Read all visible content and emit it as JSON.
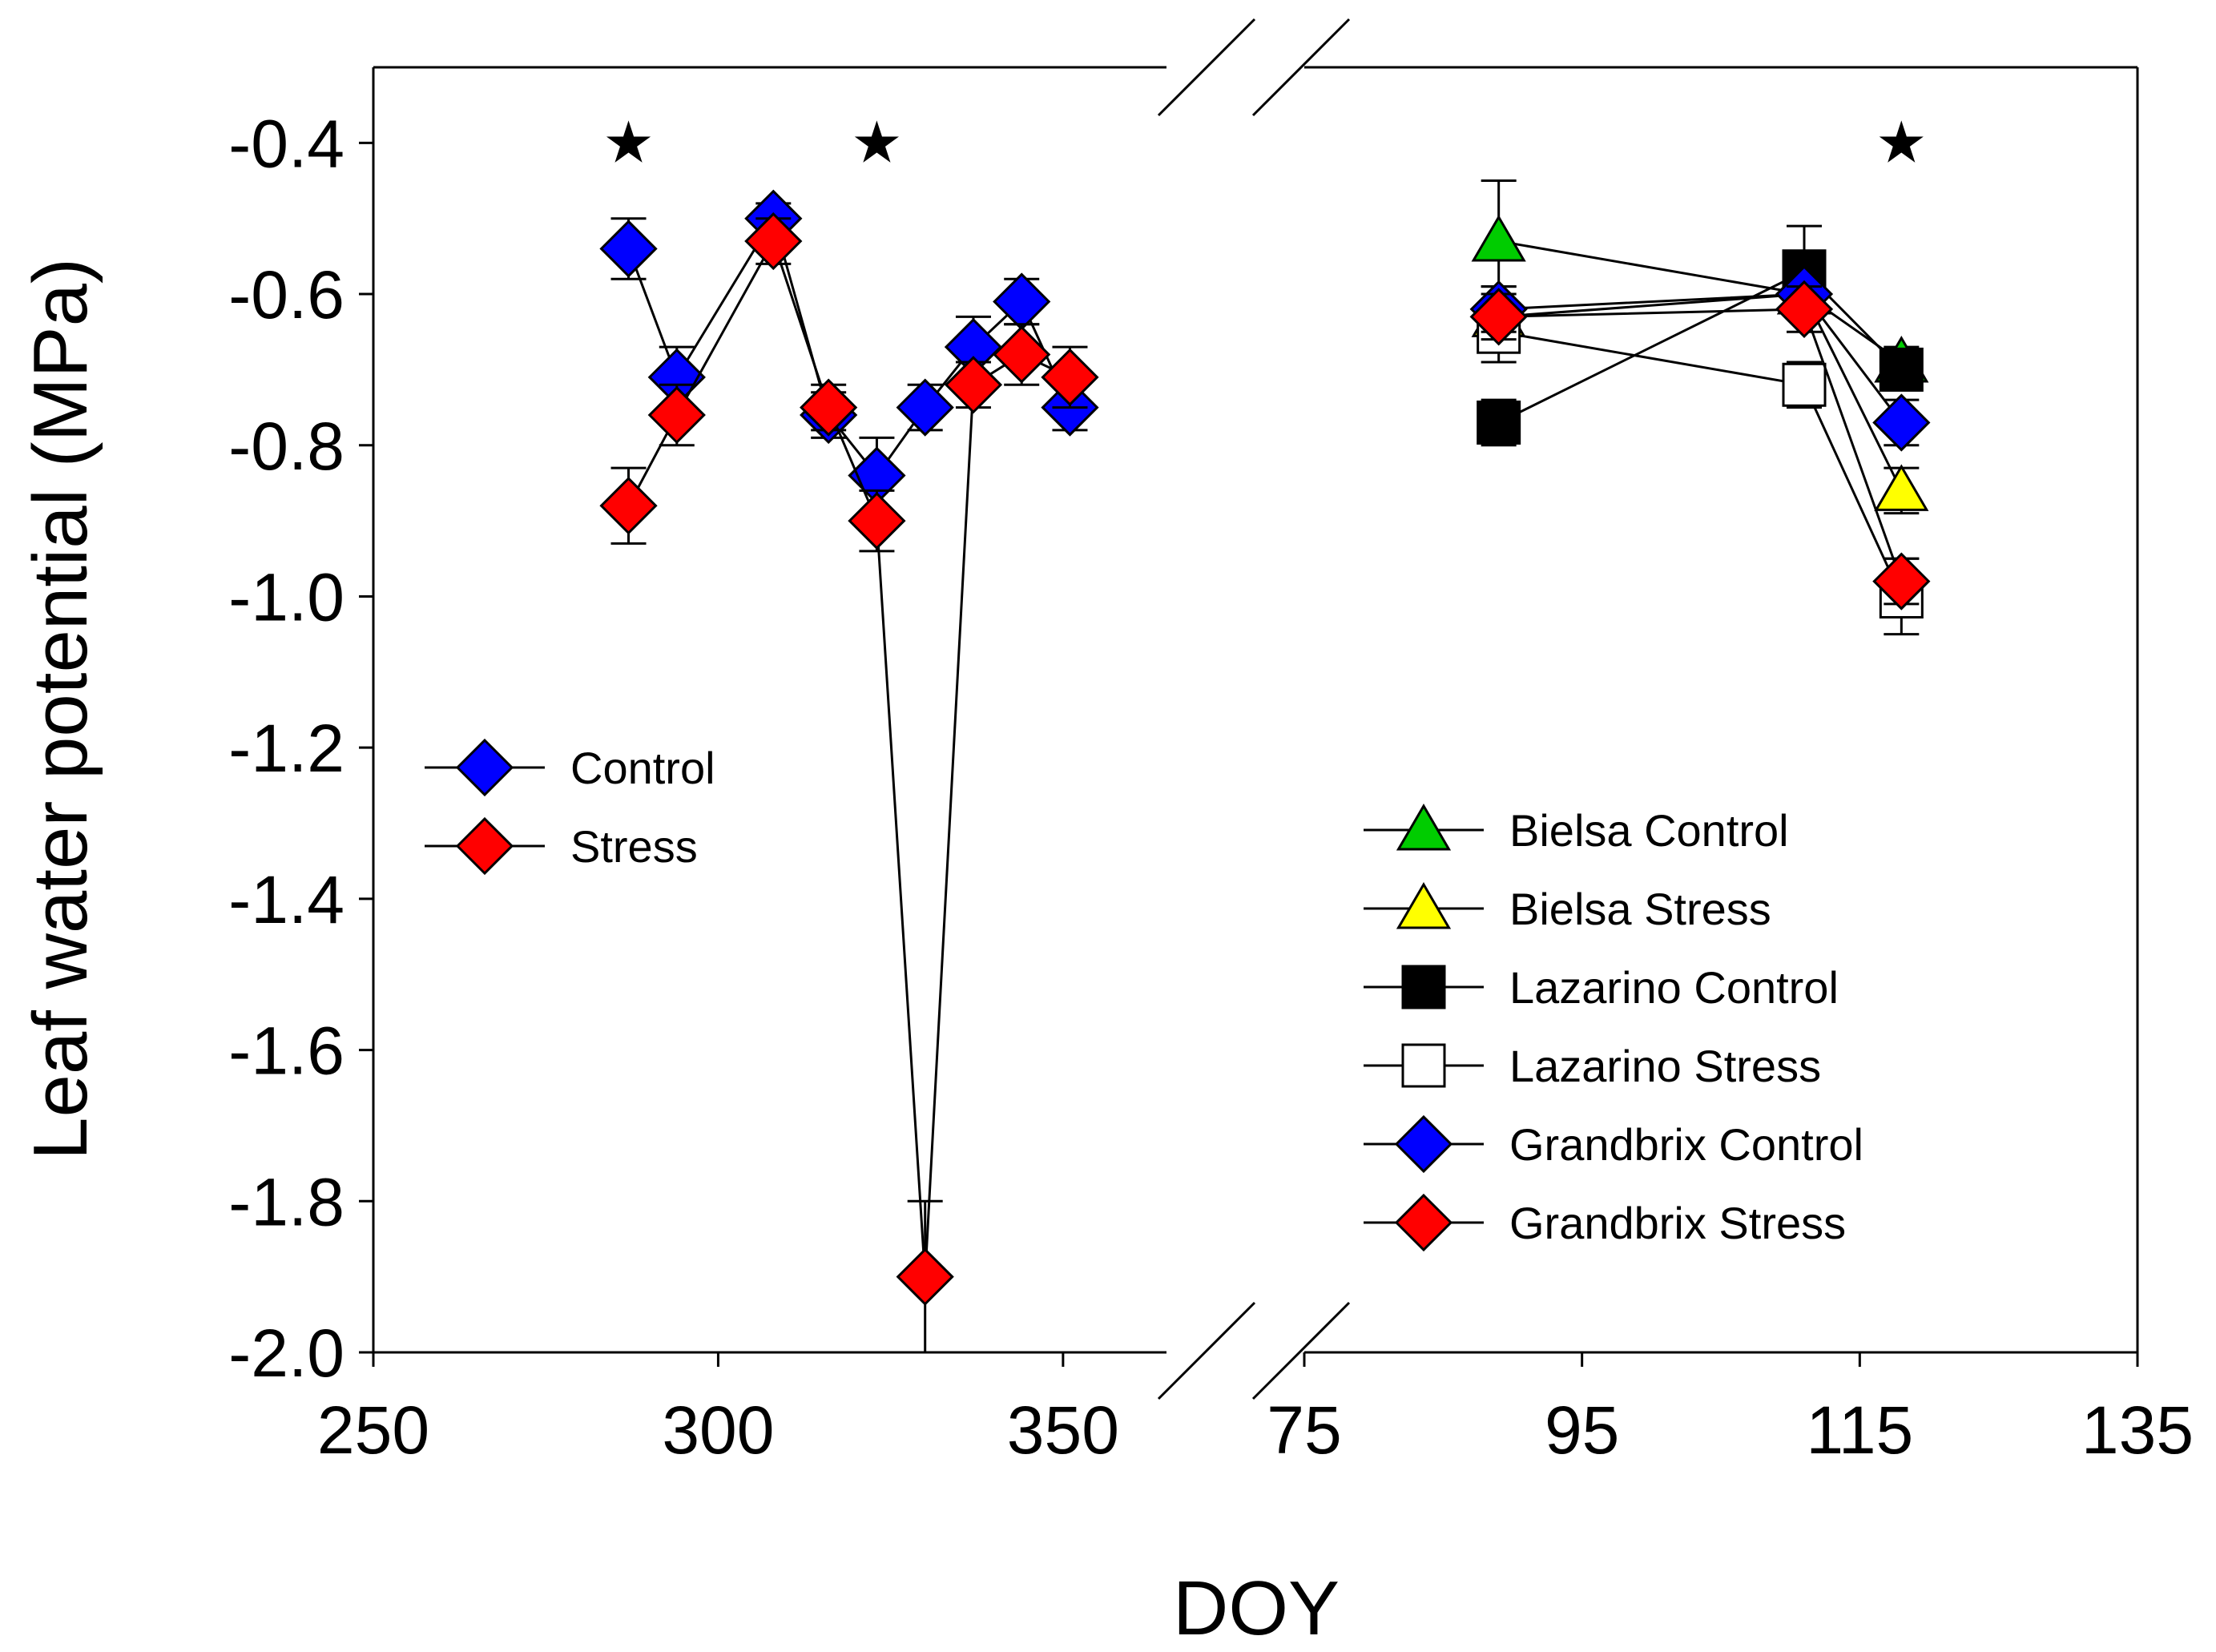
{
  "chart_data": {
    "type": "scatter",
    "xlabel": "DOY",
    "ylabel": "Leaf water potential (MPa)",
    "ylim": [
      -2.0,
      -0.3
    ],
    "yticks": [
      "-0.4",
      "-0.6",
      "-0.8",
      "-1.0",
      "-1.2",
      "-1.4",
      "-1.6",
      "-1.8",
      "-2.0"
    ],
    "ytick_values": [
      -0.4,
      -0.6,
      -0.8,
      -1.0,
      -1.2,
      -1.4,
      -1.6,
      -1.8,
      -2.0
    ],
    "broken_x_axis": true,
    "panels": [
      {
        "xlim": [
          250,
          365
        ],
        "xticks": [
          "250",
          "300",
          "350"
        ],
        "xtick_values": [
          250,
          300,
          350
        ],
        "legend_placement": "left-middle",
        "significance_x": [
          287,
          323
        ],
        "series": [
          {
            "name": "Control",
            "marker": "diamond",
            "color": "#0000ff",
            "x": [
              287,
              294,
              308,
              316,
              323,
              330,
              337,
              344,
              351
            ],
            "y": [
              -0.54,
              -0.71,
              -0.5,
              -0.76,
              -0.84,
              -0.75,
              -0.67,
              -0.61,
              -0.75
            ],
            "err": [
              0.04,
              0.04,
              0.02,
              0.03,
              0.05,
              0.03,
              0.04,
              0.03,
              0.03
            ]
          },
          {
            "name": "Stress",
            "marker": "diamond",
            "color": "#ff0000",
            "x": [
              287,
              294,
              308,
              316,
              323,
              330,
              337,
              344,
              351
            ],
            "y": [
              -0.88,
              -0.76,
              -0.53,
              -0.75,
              -0.9,
              -1.9,
              -0.72,
              -0.68,
              -0.71
            ],
            "err": [
              0.05,
              0.04,
              0.03,
              0.03,
              0.04,
              0.1,
              0.03,
              0.04,
              0.04
            ]
          }
        ]
      },
      {
        "xlim": [
          75,
          135
        ],
        "xticks": [
          "75",
          "95",
          "115",
          "135"
        ],
        "xtick_values": [
          75,
          95,
          115,
          135
        ],
        "legend_placement": "right-middle",
        "significance_x": [
          118
        ],
        "series": [
          {
            "name": "Bielsa Control",
            "marker": "triangle",
            "color": "#00cc00",
            "x": [
              89,
              111,
              118
            ],
            "y": [
              -0.53,
              -0.6,
              -0.69
            ],
            "err": [
              0.08,
              0.03,
              0.02
            ]
          },
          {
            "name": "Bielsa Stress",
            "marker": "triangle",
            "color": "#ffff00",
            "x": [
              89,
              111,
              118
            ],
            "y": [
              -0.63,
              -0.6,
              -0.86
            ],
            "err": [
              0.04,
              0.03,
              0.03
            ]
          },
          {
            "name": "Lazarino Control",
            "marker": "square",
            "color": "#000000",
            "x": [
              89,
              111,
              118
            ],
            "y": [
              -0.77,
              -0.57,
              -0.7
            ],
            "err": [
              0.03,
              0.06,
              0.02
            ]
          },
          {
            "name": "Lazarino Stress",
            "marker": "square",
            "color": "#ffffff",
            "x": [
              89,
              111,
              118
            ],
            "y": [
              -0.65,
              -0.72,
              -1.0
            ],
            "err": [
              0.04,
              0.03,
              0.05
            ]
          },
          {
            "name": "Grandbrix Control",
            "marker": "diamond",
            "color": "#0000ff",
            "x": [
              89,
              111,
              118
            ],
            "y": [
              -0.62,
              -0.6,
              -0.77
            ],
            "err": [
              0.03,
              0.03,
              0.03
            ]
          },
          {
            "name": "Grandbrix Stress",
            "marker": "diamond",
            "color": "#ff0000",
            "x": [
              89,
              111,
              118
            ],
            "y": [
              -0.63,
              -0.62,
              -0.98
            ],
            "err": [
              0.03,
              0.03,
              0.03
            ]
          }
        ]
      }
    ]
  },
  "significance_symbol": "★"
}
